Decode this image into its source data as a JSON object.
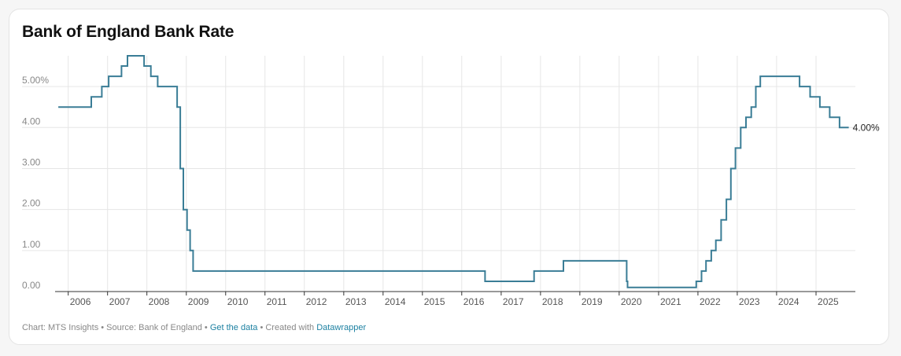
{
  "chart_data": {
    "type": "line",
    "title": "Bank of England Bank Rate",
    "xlabel": "",
    "ylabel": "",
    "step": true,
    "x_ticks": [
      "2006",
      "2007",
      "2008",
      "2009",
      "2010",
      "2011",
      "2012",
      "2013",
      "2014",
      "2015",
      "2016",
      "2017",
      "2018",
      "2019",
      "2020",
      "2021",
      "2022",
      "2023",
      "2024",
      "2025"
    ],
    "y_ticks": [
      "0.00",
      "1.00",
      "2.00",
      "3.00",
      "4.00",
      "5.00%"
    ],
    "xlim": [
      "2005-09-01",
      "2026-01-01"
    ],
    "ylim": [
      0,
      5.75
    ],
    "grid": true,
    "line_color": "#3a7d96",
    "series": [
      {
        "name": "",
        "points": [
          [
            "2005-10-01",
            4.5
          ],
          [
            "2006-08-03",
            4.75
          ],
          [
            "2006-11-09",
            5.0
          ],
          [
            "2007-01-11",
            5.25
          ],
          [
            "2007-05-10",
            5.5
          ],
          [
            "2007-07-05",
            5.75
          ],
          [
            "2007-12-06",
            5.5
          ],
          [
            "2008-02-07",
            5.25
          ],
          [
            "2008-04-10",
            5.0
          ],
          [
            "2008-10-08",
            4.5
          ],
          [
            "2008-11-06",
            3.0
          ],
          [
            "2008-12-04",
            2.0
          ],
          [
            "2009-01-08",
            1.5
          ],
          [
            "2009-02-05",
            1.0
          ],
          [
            "2009-03-05",
            0.5
          ],
          [
            "2016-08-04",
            0.25
          ],
          [
            "2017-11-02",
            0.5
          ],
          [
            "2018-08-02",
            0.75
          ],
          [
            "2020-03-11",
            0.25
          ],
          [
            "2020-03-19",
            0.1
          ],
          [
            "2021-12-16",
            0.25
          ],
          [
            "2022-02-03",
            0.5
          ],
          [
            "2022-03-17",
            0.75
          ],
          [
            "2022-05-05",
            1.0
          ],
          [
            "2022-06-16",
            1.25
          ],
          [
            "2022-08-04",
            1.75
          ],
          [
            "2022-09-22",
            2.25
          ],
          [
            "2022-11-03",
            3.0
          ],
          [
            "2022-12-15",
            3.5
          ],
          [
            "2023-02-02",
            4.0
          ],
          [
            "2023-03-23",
            4.25
          ],
          [
            "2023-05-11",
            4.5
          ],
          [
            "2023-06-22",
            5.0
          ],
          [
            "2023-08-03",
            5.25
          ],
          [
            "2024-08-01",
            5.0
          ],
          [
            "2024-11-07",
            4.75
          ],
          [
            "2025-02-06",
            4.5
          ],
          [
            "2025-05-08",
            4.25
          ],
          [
            "2025-08-07",
            4.0
          ],
          [
            "2025-11-01",
            4.0
          ]
        ]
      }
    ],
    "end_label": "4.00%"
  },
  "footer": {
    "chart_label": "Chart: MTS Insights",
    "source_label": "Source: Bank of England",
    "separator": " • ",
    "get_data_label": "Get the data",
    "created_with_label": "Created with",
    "datawrapper_label": "Datawrapper"
  }
}
